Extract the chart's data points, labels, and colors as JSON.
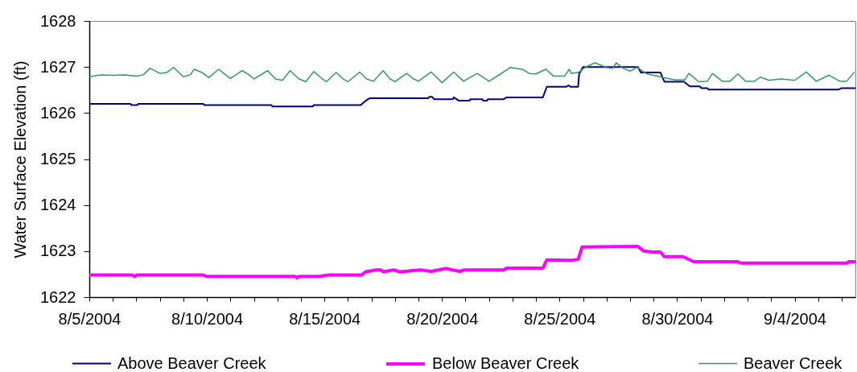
{
  "chart_data": {
    "type": "line",
    "ylabel": "Water Surface Elevation (ft)",
    "legend": "bottom",
    "xlim": [
      "2004-08-05T00:00",
      "2004-09-06T14:00"
    ],
    "ylim": [
      1622,
      1628
    ],
    "yticks": [
      1622,
      1623,
      1624,
      1625,
      1626,
      1627,
      1628
    ],
    "xticks": [
      {
        "value": "2004-08-05",
        "label": "8/5/2004"
      },
      {
        "value": "2004-08-06",
        "label": null
      },
      {
        "value": "2004-08-07",
        "label": null
      },
      {
        "value": "2004-08-08",
        "label": null
      },
      {
        "value": "2004-08-09",
        "label": null
      },
      {
        "value": "2004-08-10",
        "label": "8/10/2004"
      },
      {
        "value": "2004-08-11",
        "label": null
      },
      {
        "value": "2004-08-12",
        "label": null
      },
      {
        "value": "2004-08-13",
        "label": null
      },
      {
        "value": "2004-08-14",
        "label": null
      },
      {
        "value": "2004-08-15",
        "label": "8/15/2004"
      },
      {
        "value": "2004-08-16",
        "label": null
      },
      {
        "value": "2004-08-17",
        "label": null
      },
      {
        "value": "2004-08-18",
        "label": null
      },
      {
        "value": "2004-08-19",
        "label": null
      },
      {
        "value": "2004-08-20",
        "label": "8/20/2004"
      },
      {
        "value": "2004-08-21",
        "label": null
      },
      {
        "value": "2004-08-22",
        "label": null
      },
      {
        "value": "2004-08-23",
        "label": null
      },
      {
        "value": "2004-08-24",
        "label": null
      },
      {
        "value": "2004-08-25",
        "label": "8/25/2004"
      },
      {
        "value": "2004-08-26",
        "label": null
      },
      {
        "value": "2004-08-27",
        "label": null
      },
      {
        "value": "2004-08-28",
        "label": null
      },
      {
        "value": "2004-08-29",
        "label": null
      },
      {
        "value": "2004-08-30",
        "label": "8/30/2004"
      },
      {
        "value": "2004-08-31",
        "label": null
      },
      {
        "value": "2004-09-01",
        "label": null
      },
      {
        "value": "2004-09-02",
        "label": null
      },
      {
        "value": "2004-09-03",
        "label": null
      },
      {
        "value": "2004-09-04",
        "label": "9/4/2004"
      },
      {
        "value": "2004-09-05",
        "label": null
      },
      {
        "value": "2004-09-06",
        "label": null
      }
    ],
    "series": [
      {
        "name": "Above Beaver Creek",
        "color": "#000080",
        "x": [
          "2004-08-05T00:00",
          "2004-08-06T18:00",
          "2004-08-06T19:00",
          "2004-08-07T01:00",
          "2004-08-07T02:00",
          "2004-08-09T20:00",
          "2004-08-09T22:00",
          "2004-08-12T18:00",
          "2004-08-12T19:00",
          "2004-08-14T12:00",
          "2004-08-14T13:00",
          "2004-08-16T13:00",
          "2004-08-16T19:00",
          "2004-08-16T22:00",
          "2004-08-19T10:00",
          "2004-08-19T11:00",
          "2004-08-19T14:00",
          "2004-08-19T16:00",
          "2004-08-20T11:00",
          "2004-08-20T12:00",
          "2004-08-20T17:00",
          "2004-08-21T04:00",
          "2004-08-21T05:00",
          "2004-08-21T17:00",
          "2004-08-21T18:00",
          "2004-08-21T22:00",
          "2004-08-21T23:00",
          "2004-08-22T15:00",
          "2004-08-22T18:00",
          "2004-08-24T07:00",
          "2004-08-24T11:00",
          "2004-08-25T07:00",
          "2004-08-25T09:00",
          "2004-08-25T11:00",
          "2004-08-25T19:00",
          "2004-08-25T20:00",
          "2004-08-26T00:00",
          "2004-08-28T08:00",
          "2004-08-28T11:00",
          "2004-08-29T07:00",
          "2004-08-29T11:00",
          "2004-08-30T07:00",
          "2004-08-30T13:00",
          "2004-08-30T23:00",
          "2004-08-31T01:00",
          "2004-08-31T07:00",
          "2004-08-31T08:00",
          "2004-09-05T21:00",
          "2004-09-06T00:00",
          "2004-09-06T14:00"
        ],
        "values": [
          1626.2,
          1626.2,
          1626.17,
          1626.17,
          1626.2,
          1626.2,
          1626.17,
          1626.17,
          1626.14,
          1626.14,
          1626.17,
          1626.17,
          1626.28,
          1626.32,
          1626.32,
          1626.35,
          1626.35,
          1626.3,
          1626.3,
          1626.34,
          1626.27,
          1626.27,
          1626.3,
          1626.3,
          1626.27,
          1626.27,
          1626.3,
          1626.3,
          1626.34,
          1626.34,
          1626.57,
          1626.57,
          1626.6,
          1626.57,
          1626.57,
          1626.85,
          1627.0,
          1627.0,
          1626.88,
          1626.88,
          1626.68,
          1626.68,
          1626.58,
          1626.58,
          1626.54,
          1626.54,
          1626.51,
          1626.51,
          1626.54,
          1626.54
        ]
      },
      {
        "name": "Below  Beaver Creek",
        "color": "#ff00ff",
        "x": [
          "2004-08-05T00:00",
          "2004-08-06T20:00",
          "2004-08-06T22:00",
          "2004-08-07T00:00",
          "2004-08-09T20:00",
          "2004-08-10T00:00",
          "2004-08-13T18:00",
          "2004-08-13T20:00",
          "2004-08-13T22:00",
          "2004-08-14T18:00",
          "2004-08-15T05:00",
          "2004-08-16T14:00",
          "2004-08-16T18:00",
          "2004-08-17T05:00",
          "2004-08-17T10:00",
          "2004-08-17T12:00",
          "2004-08-17T23:00",
          "2004-08-18T05:00",
          "2004-08-19T02:00",
          "2004-08-19T13:00",
          "2004-08-20T04:00",
          "2004-08-20T18:00",
          "2004-08-20T23:00",
          "2004-08-22T15:00",
          "2004-08-22T18:00",
          "2004-08-24T07:00",
          "2004-08-24T11:00",
          "2004-08-25T12:00",
          "2004-08-25T19:00",
          "2004-08-25T23:00",
          "2004-08-28T08:00",
          "2004-08-28T14:00",
          "2004-08-28T22:00",
          "2004-08-29T07:00",
          "2004-08-29T11:00",
          "2004-08-30T06:00",
          "2004-08-30T17:00",
          "2004-09-01T14:00",
          "2004-09-01T17:00",
          "2004-09-06T06:00",
          "2004-09-06T07:00",
          "2004-09-06T14:00"
        ],
        "values": [
          1622.48,
          1622.48,
          1622.45,
          1622.48,
          1622.48,
          1622.45,
          1622.45,
          1622.42,
          1622.45,
          1622.45,
          1622.48,
          1622.48,
          1622.55,
          1622.59,
          1622.59,
          1622.55,
          1622.59,
          1622.55,
          1622.59,
          1622.56,
          1622.62,
          1622.56,
          1622.59,
          1622.59,
          1622.63,
          1622.63,
          1622.81,
          1622.8,
          1622.82,
          1623.09,
          1623.1,
          1623.0,
          1622.98,
          1622.98,
          1622.88,
          1622.88,
          1622.77,
          1622.77,
          1622.74,
          1622.74,
          1622.77,
          1622.77
        ]
      },
      {
        "name": "Beaver Creek",
        "color": "#339966",
        "x": [
          "2004-08-05T00:00",
          "2004-08-05T12:00",
          "2004-08-06T00:00",
          "2004-08-06T12:00",
          "2004-08-07T00:00",
          "2004-08-07T07:00",
          "2004-08-07T14:00",
          "2004-08-08T00:00",
          "2004-08-08T07:00",
          "2004-08-08T14:00",
          "2004-08-09T00:00",
          "2004-08-09T07:00",
          "2004-08-09T11:00",
          "2004-08-09T19:00",
          "2004-08-10T02:00",
          "2004-08-10T12:00",
          "2004-08-10T19:00",
          "2004-08-11T00:00",
          "2004-08-11T12:00",
          "2004-08-11T19:00",
          "2004-08-12T00:00",
          "2004-08-12T14:00",
          "2004-08-12T22:00",
          "2004-08-13T05:00",
          "2004-08-13T13:00",
          "2004-08-13T22:00",
          "2004-08-14T05:00",
          "2004-08-14T13:00",
          "2004-08-14T22:00",
          "2004-08-15T02:00",
          "2004-08-15T12:00",
          "2004-08-15T19:00",
          "2004-08-16T00:00",
          "2004-08-16T12:00",
          "2004-08-16T19:00",
          "2004-08-17T02:00",
          "2004-08-17T12:00",
          "2004-08-17T19:00",
          "2004-08-18T00:00",
          "2004-08-18T12:00",
          "2004-08-18T19:00",
          "2004-08-19T00:00",
          "2004-08-19T13:00",
          "2004-08-20T00:00",
          "2004-08-20T12:00",
          "2004-08-20T22:00",
          "2004-08-21T12:00",
          "2004-08-22T00:00",
          "2004-08-22T12:00",
          "2004-08-22T22:00",
          "2004-08-23T11:00",
          "2004-08-23T17:00",
          "2004-08-24T00:00",
          "2004-08-24T10:00",
          "2004-08-24T18:00",
          "2004-08-25T05:00",
          "2004-08-25T10:00",
          "2004-08-25T12:00",
          "2004-08-25T20:00",
          "2004-08-26T02:00",
          "2004-08-26T12:00",
          "2004-08-27T00:00",
          "2004-08-27T06:00",
          "2004-08-27T10:00",
          "2004-08-27T17:00",
          "2004-08-28T00:00",
          "2004-08-28T07:00",
          "2004-08-28T17:00",
          "2004-08-29T00:00",
          "2004-08-29T10:00",
          "2004-08-29T22:00",
          "2004-08-30T08:00",
          "2004-08-30T12:00",
          "2004-08-30T22:00",
          "2004-08-31T07:00",
          "2004-08-31T12:00",
          "2004-08-31T22:00",
          "2004-09-01T06:00",
          "2004-09-01T14:00",
          "2004-09-01T22:00",
          "2004-09-02T07:00",
          "2004-09-02T13:00",
          "2004-09-02T22:00",
          "2004-09-03T10:00",
          "2004-09-04T00:00",
          "2004-09-04T12:00",
          "2004-09-04T22:00",
          "2004-09-05T11:00",
          "2004-09-05T22:00",
          "2004-09-06T05:00",
          "2004-09-06T13:00"
        ],
        "values": [
          1626.79,
          1626.83,
          1626.82,
          1626.83,
          1626.8,
          1626.83,
          1626.97,
          1626.86,
          1626.88,
          1626.99,
          1626.79,
          1626.83,
          1626.95,
          1626.88,
          1626.77,
          1626.95,
          1626.83,
          1626.75,
          1626.92,
          1626.83,
          1626.74,
          1626.92,
          1626.74,
          1626.71,
          1626.92,
          1626.74,
          1626.68,
          1626.9,
          1626.74,
          1626.68,
          1626.88,
          1626.74,
          1626.68,
          1626.89,
          1626.74,
          1626.69,
          1626.92,
          1626.74,
          1626.68,
          1626.86,
          1626.74,
          1626.69,
          1626.89,
          1626.66,
          1626.89,
          1626.69,
          1626.86,
          1626.69,
          1626.85,
          1626.99,
          1626.94,
          1626.86,
          1626.85,
          1626.95,
          1626.8,
          1626.8,
          1626.95,
          1626.86,
          1626.89,
          1626.99,
          1627.09,
          1626.99,
          1626.97,
          1627.09,
          1626.97,
          1626.91,
          1626.99,
          1626.85,
          1626.82,
          1626.77,
          1626.72,
          1626.72,
          1626.86,
          1626.68,
          1626.69,
          1626.86,
          1626.69,
          1626.69,
          1626.85,
          1626.69,
          1626.69,
          1626.78,
          1626.71,
          1626.74,
          1626.71,
          1626.89,
          1626.69,
          1626.82,
          1626.69,
          1626.69,
          1626.89
        ]
      }
    ]
  }
}
